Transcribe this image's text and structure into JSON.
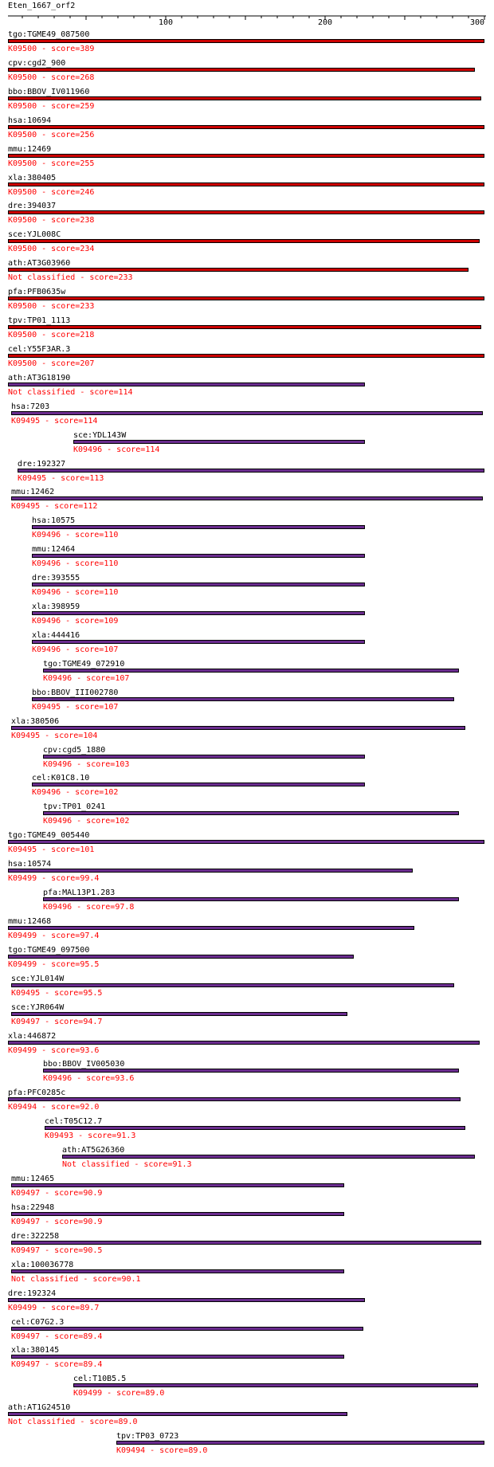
{
  "query": {
    "name": "Eten_1667_orf2",
    "length": 300
  },
  "axis": {
    "ticks": [
      100,
      200,
      300
    ]
  },
  "colors": {
    "top_bar": "#cc0000",
    "other_bar": "#6a2c8e",
    "label": "#000000",
    "annotation": "#ff0000"
  },
  "hits": [
    {
      "label": "tgo:TGME49_087500",
      "ko": "K09500",
      "score": "389",
      "start": 1,
      "end": 300
    },
    {
      "label": "cpv:cgd2_900",
      "ko": "K09500",
      "score": "268",
      "start": 1,
      "end": 294
    },
    {
      "label": "bbo:BBOV_IV011960",
      "ko": "K09500",
      "score": "259",
      "start": 1,
      "end": 298
    },
    {
      "label": "hsa:10694",
      "ko": "K09500",
      "score": "256",
      "start": 1,
      "end": 300
    },
    {
      "label": "mmu:12469",
      "ko": "K09500",
      "score": "255",
      "start": 1,
      "end": 300
    },
    {
      "label": "xla:380405",
      "ko": "K09500",
      "score": "246",
      "start": 1,
      "end": 300
    },
    {
      "label": "dre:394037",
      "ko": "K09500",
      "score": "238",
      "start": 1,
      "end": 300
    },
    {
      "label": "sce:YJL008C",
      "ko": "K09500",
      "score": "234",
      "start": 1,
      "end": 297
    },
    {
      "label": "ath:AT3G03960",
      "ko": "Not classified",
      "score": "233",
      "start": 1,
      "end": 290
    },
    {
      "label": "pfa:PFB0635w",
      "ko": "K09500",
      "score": "233",
      "start": 1,
      "end": 300
    },
    {
      "label": "tpv:TP01_1113",
      "ko": "K09500",
      "score": "218",
      "start": 1,
      "end": 298
    },
    {
      "label": "cel:Y55F3AR.3",
      "ko": "K09500",
      "score": "207",
      "start": 1,
      "end": 300
    },
    {
      "label": "ath:AT3G18190",
      "ko": "Not classified",
      "score": "114",
      "start": 1,
      "end": 225
    },
    {
      "label": "hsa:7203",
      "ko": "K09495",
      "score": "114",
      "start": 3,
      "end": 299
    },
    {
      "label": "sce:YDL143W",
      "ko": "K09496",
      "score": "114",
      "start": 42,
      "end": 225
    },
    {
      "label": "dre:192327",
      "ko": "K09495",
      "score": "113",
      "start": 7,
      "end": 300
    },
    {
      "label": "mmu:12462",
      "ko": "K09495",
      "score": "112",
      "start": 3,
      "end": 299
    },
    {
      "label": "hsa:10575",
      "ko": "K09496",
      "score": "110",
      "start": 16,
      "end": 225
    },
    {
      "label": "mmu:12464",
      "ko": "K09496",
      "score": "110",
      "start": 16,
      "end": 225
    },
    {
      "label": "dre:393555",
      "ko": "K09496",
      "score": "110",
      "start": 16,
      "end": 225
    },
    {
      "label": "xla:398959",
      "ko": "K09496",
      "score": "109",
      "start": 16,
      "end": 225
    },
    {
      "label": "xla:444416",
      "ko": "K09496",
      "score": "107",
      "start": 16,
      "end": 225
    },
    {
      "label": "tgo:TGME49_072910",
      "ko": "K09496",
      "score": "107",
      "start": 23,
      "end": 284
    },
    {
      "label": "bbo:BBOV_III002780",
      "ko": "K09495",
      "score": "107",
      "start": 16,
      "end": 281
    },
    {
      "label": "xla:380506",
      "ko": "K09495",
      "score": "104",
      "start": 3,
      "end": 288
    },
    {
      "label": "cpv:cgd5_1880",
      "ko": "K09496",
      "score": "103",
      "start": 23,
      "end": 225
    },
    {
      "label": "cel:K01C8.10",
      "ko": "K09496",
      "score": "102",
      "start": 16,
      "end": 225
    },
    {
      "label": "tpv:TP01_0241",
      "ko": "K09496",
      "score": "102",
      "start": 23,
      "end": 284
    },
    {
      "label": "tgo:TGME49_005440",
      "ko": "K09495",
      "score": "101",
      "start": 1,
      "end": 300
    },
    {
      "label": "hsa:10574",
      "ko": "K09499",
      "score": "99.4",
      "start": 1,
      "end": 255
    },
    {
      "label": "pfa:MAL13P1.283",
      "ko": "K09496",
      "score": "97.8",
      "start": 23,
      "end": 284
    },
    {
      "label": "mmu:12468",
      "ko": "K09499",
      "score": "97.4",
      "start": 1,
      "end": 256
    },
    {
      "label": "tgo:TGME49_097500",
      "ko": "K09499",
      "score": "95.5",
      "start": 1,
      "end": 218
    },
    {
      "label": "sce:YJL014W",
      "ko": "K09495",
      "score": "95.5",
      "start": 3,
      "end": 281
    },
    {
      "label": "sce:YJR064W",
      "ko": "K09497",
      "score": "94.7",
      "start": 3,
      "end": 214
    },
    {
      "label": "xla:446872",
      "ko": "K09499",
      "score": "93.6",
      "start": 1,
      "end": 297
    },
    {
      "label": "bbo:BBOV_IV005030",
      "ko": "K09496",
      "score": "93.6",
      "start": 23,
      "end": 284
    },
    {
      "label": "pfa:PFC0285c",
      "ko": "K09494",
      "score": "92.0",
      "start": 1,
      "end": 285
    },
    {
      "label": "cel:T05C12.7",
      "ko": "K09493",
      "score": "91.3",
      "start": 24,
      "end": 288
    },
    {
      "label": "ath:AT5G26360",
      "ko": "Not classified",
      "score": "91.3",
      "start": 35,
      "end": 294
    },
    {
      "label": "mmu:12465",
      "ko": "K09497",
      "score": "90.9",
      "start": 3,
      "end": 212
    },
    {
      "label": "hsa:22948",
      "ko": "K09497",
      "score": "90.9",
      "start": 3,
      "end": 212
    },
    {
      "label": "dre:322258",
      "ko": "K09497",
      "score": "90.5",
      "start": 3,
      "end": 298
    },
    {
      "label": "xla:100036778",
      "ko": "Not classified",
      "score": "90.1",
      "start": 3,
      "end": 212
    },
    {
      "label": "dre:192324",
      "ko": "K09499",
      "score": "89.7",
      "start": 1,
      "end": 225
    },
    {
      "label": "cel:C07G2.3",
      "ko": "K09497",
      "score": "89.4",
      "start": 3,
      "end": 224
    },
    {
      "label": "xla:380145",
      "ko": "K09497",
      "score": "89.4",
      "start": 3,
      "end": 212
    },
    {
      "label": "cel:T10B5.5",
      "ko": "K09499",
      "score": "89.0",
      "start": 42,
      "end": 296
    },
    {
      "label": "ath:AT1G24510",
      "ko": "Not classified",
      "score": "89.0",
      "start": 1,
      "end": 214
    },
    {
      "label": "tpv:TP03_0723",
      "ko": "K09494",
      "score": "89.0",
      "start": 69,
      "end": 300
    }
  ]
}
